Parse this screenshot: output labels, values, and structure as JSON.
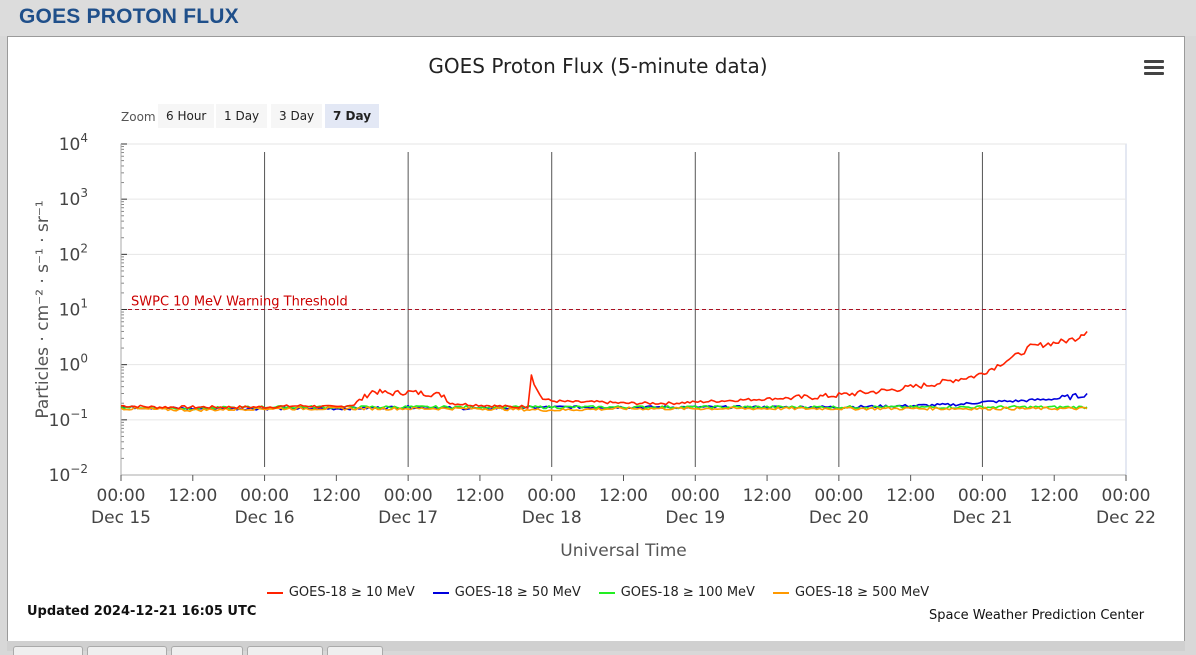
{
  "page": {
    "header": "GOES PROTON FLUX"
  },
  "chart": {
    "title": "GOES Proton Flux (5-minute data)",
    "zoom_label": "Zoom",
    "zoom_options": [
      "6 Hour",
      "1 Day",
      "3 Day",
      "7 Day"
    ],
    "zoom_selected": "7 Day",
    "updated": "Updated 2024-12-21 16:05 UTC",
    "credit": "Space Weather Prediction Center",
    "threshold_label": "SWPC 10 MeV Warning Threshold"
  },
  "chart_data": {
    "type": "line",
    "title": "GOES Proton Flux (5-minute data)",
    "xlabel": "Universal Time",
    "ylabel": "Particles · cm⁻² · s⁻¹ · sr⁻¹",
    "yscale": "log",
    "ylim": [
      0.01,
      10000
    ],
    "xlim": [
      0,
      168
    ],
    "x_units": "hours since 2024-12-15 00:00 UTC",
    "x_ticks": [
      {
        "hour": 0,
        "time": "00:00",
        "date": "Dec 15"
      },
      {
        "hour": 12,
        "time": "12:00",
        "date": ""
      },
      {
        "hour": 24,
        "time": "00:00",
        "date": "Dec 16"
      },
      {
        "hour": 36,
        "time": "12:00",
        "date": ""
      },
      {
        "hour": 48,
        "time": "00:00",
        "date": "Dec 17"
      },
      {
        "hour": 60,
        "time": "12:00",
        "date": ""
      },
      {
        "hour": 72,
        "time": "00:00",
        "date": "Dec 18"
      },
      {
        "hour": 84,
        "time": "12:00",
        "date": ""
      },
      {
        "hour": 96,
        "time": "00:00",
        "date": "Dec 19"
      },
      {
        "hour": 108,
        "time": "12:00",
        "date": ""
      },
      {
        "hour": 120,
        "time": "00:00",
        "date": "Dec 20"
      },
      {
        "hour": 132,
        "time": "12:00",
        "date": ""
      },
      {
        "hour": 144,
        "time": "00:00",
        "date": "Dec 21"
      },
      {
        "hour": 156,
        "time": "12:00",
        "date": ""
      },
      {
        "hour": 168,
        "time": "00:00",
        "date": "Dec 22"
      }
    ],
    "y_ticks": [
      {
        "value": 0.01,
        "base": "10",
        "exp": "−2"
      },
      {
        "value": 0.1,
        "base": "10",
        "exp": "−1"
      },
      {
        "value": 1,
        "base": "10",
        "exp": "0"
      },
      {
        "value": 10,
        "base": "10",
        "exp": "1"
      },
      {
        "value": 100,
        "base": "10",
        "exp": "2"
      },
      {
        "value": 1000,
        "base": "10",
        "exp": "3"
      },
      {
        "value": 10000,
        "base": "10",
        "exp": "4"
      }
    ],
    "day_lines": [
      24,
      48,
      72,
      96,
      120,
      144
    ],
    "threshold": 10,
    "legend_position": "bottom",
    "series": [
      {
        "name": "GOES-18 ≥ 10 MeV",
        "color": "#ff2200",
        "points": [
          [
            0,
            0.18
          ],
          [
            6,
            0.17
          ],
          [
            12,
            0.17
          ],
          [
            18,
            0.17
          ],
          [
            24,
            0.17
          ],
          [
            30,
            0.18
          ],
          [
            36,
            0.17
          ],
          [
            39,
            0.19
          ],
          [
            42,
            0.33
          ],
          [
            45,
            0.3
          ],
          [
            48,
            0.32
          ],
          [
            51,
            0.3
          ],
          [
            54,
            0.28
          ],
          [
            55,
            0.2
          ],
          [
            58,
            0.19
          ],
          [
            62,
            0.18
          ],
          [
            66,
            0.17
          ],
          [
            68,
            0.18
          ],
          [
            68.6,
            0.68
          ],
          [
            69.5,
            0.35
          ],
          [
            70.5,
            0.24
          ],
          [
            72,
            0.22
          ],
          [
            76,
            0.21
          ],
          [
            80,
            0.21
          ],
          [
            84,
            0.2
          ],
          [
            88,
            0.2
          ],
          [
            92,
            0.2
          ],
          [
            96,
            0.21
          ],
          [
            100,
            0.22
          ],
          [
            104,
            0.23
          ],
          [
            108,
            0.24
          ],
          [
            112,
            0.25
          ],
          [
            116,
            0.26
          ],
          [
            120,
            0.28
          ],
          [
            124,
            0.31
          ],
          [
            128,
            0.34
          ],
          [
            132,
            0.39
          ],
          [
            136,
            0.45
          ],
          [
            140,
            0.55
          ],
          [
            143,
            0.63
          ],
          [
            146,
            0.9
          ],
          [
            148,
            1.2
          ],
          [
            150,
            1.5
          ],
          [
            152,
            2.1
          ],
          [
            155,
            2.4
          ],
          [
            158,
            2.7
          ],
          [
            160,
            3.1
          ],
          [
            160.5,
            3.6
          ],
          [
            161.5,
            4.0
          ]
        ]
      },
      {
        "name": "GOES-18 ≥ 50 MeV",
        "color": "#0000dd",
        "points": [
          [
            0,
            0.17
          ],
          [
            12,
            0.16
          ],
          [
            24,
            0.16
          ],
          [
            36,
            0.16
          ],
          [
            48,
            0.17
          ],
          [
            60,
            0.16
          ],
          [
            72,
            0.17
          ],
          [
            84,
            0.17
          ],
          [
            96,
            0.17
          ],
          [
            108,
            0.17
          ],
          [
            120,
            0.17
          ],
          [
            132,
            0.18
          ],
          [
            140,
            0.19
          ],
          [
            144,
            0.21
          ],
          [
            150,
            0.22
          ],
          [
            156,
            0.24
          ],
          [
            160,
            0.27
          ],
          [
            161.5,
            0.3
          ]
        ]
      },
      {
        "name": "GOES-18 ≥ 100 MeV",
        "color": "#22ee22",
        "points": [
          [
            0,
            0.17
          ],
          [
            12,
            0.16
          ],
          [
            24,
            0.17
          ],
          [
            36,
            0.17
          ],
          [
            48,
            0.17
          ],
          [
            60,
            0.17
          ],
          [
            72,
            0.17
          ],
          [
            84,
            0.17
          ],
          [
            96,
            0.17
          ],
          [
            108,
            0.17
          ],
          [
            120,
            0.17
          ],
          [
            132,
            0.17
          ],
          [
            144,
            0.17
          ],
          [
            152,
            0.17
          ],
          [
            161.5,
            0.17
          ]
        ]
      },
      {
        "name": "GOES-18 ≥ 500 MeV",
        "color": "#ff9900",
        "points": [
          [
            0,
            0.16
          ],
          [
            12,
            0.15
          ],
          [
            24,
            0.16
          ],
          [
            36,
            0.16
          ],
          [
            48,
            0.16
          ],
          [
            60,
            0.16
          ],
          [
            72,
            0.15
          ],
          [
            84,
            0.16
          ],
          [
            96,
            0.16
          ],
          [
            108,
            0.16
          ],
          [
            120,
            0.16
          ],
          [
            132,
            0.16
          ],
          [
            144,
            0.16
          ],
          [
            152,
            0.16
          ],
          [
            161.5,
            0.16
          ]
        ]
      }
    ]
  }
}
